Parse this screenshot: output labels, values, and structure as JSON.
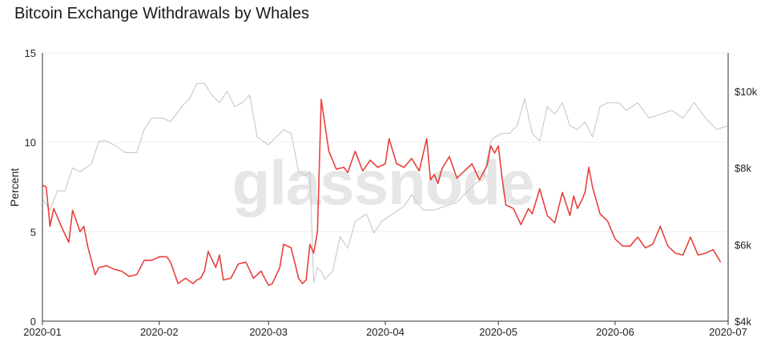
{
  "title": "Bitcoin Exchange Withdrawals by Whales",
  "watermark": "glassnode",
  "colors": {
    "percent_series": "#e8413c",
    "price_series": "#c8c8c8",
    "grid": "#eeeeee",
    "axis": "#333333"
  },
  "chart_data": {
    "type": "line",
    "title": "Bitcoin Exchange Withdrawals by Whales",
    "ylabel": "Percent",
    "ylim": [
      0,
      15
    ],
    "y_ticks": [
      0,
      5,
      10,
      15
    ],
    "y2lim": [
      4000,
      11000
    ],
    "y2_ticks": [
      4000,
      6000,
      8000,
      10000
    ],
    "y2_tick_labels": [
      "$4k",
      "$6k",
      "$8k",
      "$10k"
    ],
    "xlim": [
      "2020-01-01",
      "2020-07-01"
    ],
    "x_ticks": [
      "2020-01",
      "2020-02",
      "2020-03",
      "2020-04",
      "2020-05",
      "2020-06",
      "2020-07"
    ],
    "grid": "horizontal",
    "series": [
      {
        "axis": "left",
        "x": [
          "2020-01-01",
          "2020-01-02",
          "2020-01-03",
          "2020-01-04",
          "2020-01-05",
          "2020-01-06",
          "2020-01-08",
          "2020-01-09",
          "2020-01-10",
          "2020-01-11",
          "2020-01-12",
          "2020-01-13",
          "2020-01-15",
          "2020-01-16",
          "2020-01-18",
          "2020-01-20",
          "2020-01-22",
          "2020-01-24",
          "2020-01-26",
          "2020-01-28",
          "2020-01-30",
          "2020-02-01",
          "2020-02-02",
          "2020-02-03",
          "2020-02-04",
          "2020-02-06",
          "2020-02-08",
          "2020-02-10",
          "2020-02-11",
          "2020-02-12",
          "2020-02-13",
          "2020-02-14",
          "2020-02-16",
          "2020-02-17",
          "2020-02-18",
          "2020-02-20",
          "2020-02-22",
          "2020-02-24",
          "2020-02-26",
          "2020-02-28",
          "2020-03-01",
          "2020-03-02",
          "2020-03-04",
          "2020-03-05",
          "2020-03-07",
          "2020-03-09",
          "2020-03-10",
          "2020-03-11",
          "2020-03-12",
          "2020-03-13",
          "2020-03-14",
          "2020-03-15",
          "2020-03-17",
          "2020-03-19",
          "2020-03-21",
          "2020-03-22",
          "2020-03-24",
          "2020-03-26",
          "2020-03-28",
          "2020-03-30",
          "2020-04-01",
          "2020-04-02",
          "2020-04-04",
          "2020-04-06",
          "2020-04-08",
          "2020-04-10",
          "2020-04-12",
          "2020-04-13",
          "2020-04-14",
          "2020-04-15",
          "2020-04-16",
          "2020-04-18",
          "2020-04-20",
          "2020-04-22",
          "2020-04-24",
          "2020-04-26",
          "2020-04-28",
          "2020-04-29",
          "2020-04-30",
          "2020-05-01",
          "2020-05-02",
          "2020-05-03",
          "2020-05-05",
          "2020-05-07",
          "2020-05-09",
          "2020-05-10",
          "2020-05-12",
          "2020-05-14",
          "2020-05-16",
          "2020-05-18",
          "2020-05-20",
          "2020-05-21",
          "2020-05-22",
          "2020-05-23",
          "2020-05-24",
          "2020-05-25",
          "2020-05-26",
          "2020-05-28",
          "2020-05-30",
          "2020-06-01",
          "2020-06-03",
          "2020-06-05",
          "2020-06-07",
          "2020-06-09",
          "2020-06-11",
          "2020-06-13",
          "2020-06-15",
          "2020-06-17",
          "2020-06-19",
          "2020-06-21",
          "2020-06-23",
          "2020-06-25",
          "2020-06-27",
          "2020-06-29"
        ],
        "values": [
          7.6,
          7.5,
          5.3,
          6.3,
          5.8,
          5.3,
          4.4,
          6.2,
          5.6,
          5.0,
          5.3,
          4.2,
          2.6,
          3.0,
          3.1,
          2.9,
          2.8,
          2.5,
          2.6,
          3.4,
          3.4,
          3.6,
          3.6,
          3.6,
          3.3,
          2.1,
          2.4,
          2.1,
          2.3,
          2.4,
          2.8,
          3.9,
          3.0,
          3.7,
          2.3,
          2.4,
          3.2,
          3.3,
          2.4,
          2.8,
          2.0,
          2.1,
          3.0,
          4.3,
          4.1,
          2.4,
          2.1,
          2.3,
          4.3,
          3.8,
          5.0,
          12.4,
          9.5,
          8.5,
          8.6,
          8.3,
          9.5,
          8.4,
          9.0,
          8.6,
          8.8,
          10.2,
          8.8,
          8.6,
          9.1,
          8.4,
          10.2,
          7.9,
          8.2,
          7.7,
          8.5,
          9.2,
          8.0,
          8.4,
          8.8,
          7.9,
          8.7,
          9.8,
          9.4,
          9.8,
          8.0,
          6.5,
          6.3,
          5.4,
          6.3,
          6.0,
          7.4,
          5.9,
          5.5,
          7.2,
          5.9,
          7.0,
          6.3,
          6.7,
          7.2,
          8.6,
          7.5,
          6.0,
          5.6,
          4.6,
          4.2,
          4.2,
          4.7,
          4.1,
          4.3,
          5.3,
          4.2,
          3.8,
          3.7,
          4.7,
          3.7,
          3.8,
          4.0,
          3.3
        ]
      },
      {
        "axis": "right",
        "x": [
          "2020-01-01",
          "2020-01-03",
          "2020-01-05",
          "2020-01-07",
          "2020-01-09",
          "2020-01-11",
          "2020-01-14",
          "2020-01-16",
          "2020-01-18",
          "2020-01-20",
          "2020-01-23",
          "2020-01-26",
          "2020-01-28",
          "2020-01-30",
          "2020-02-02",
          "2020-02-04",
          "2020-02-07",
          "2020-02-09",
          "2020-02-11",
          "2020-02-13",
          "2020-02-15",
          "2020-02-17",
          "2020-02-19",
          "2020-02-21",
          "2020-02-23",
          "2020-02-25",
          "2020-02-27",
          "2020-03-01",
          "2020-03-03",
          "2020-03-05",
          "2020-03-07",
          "2020-03-09",
          "2020-03-11",
          "2020-03-12",
          "2020-03-13",
          "2020-03-14",
          "2020-03-15",
          "2020-03-16",
          "2020-03-18",
          "2020-03-20",
          "2020-03-22",
          "2020-03-24",
          "2020-03-27",
          "2020-03-29",
          "2020-03-31",
          "2020-04-03",
          "2020-04-06",
          "2020-04-08",
          "2020-04-11",
          "2020-04-14",
          "2020-04-17",
          "2020-04-20",
          "2020-04-23",
          "2020-04-25",
          "2020-04-27",
          "2020-04-29",
          "2020-04-30",
          "2020-05-02",
          "2020-05-04",
          "2020-05-06",
          "2020-05-08",
          "2020-05-10",
          "2020-05-12",
          "2020-05-14",
          "2020-05-16",
          "2020-05-18",
          "2020-05-20",
          "2020-05-22",
          "2020-05-24",
          "2020-05-26",
          "2020-05-28",
          "2020-05-30",
          "2020-06-02",
          "2020-06-04",
          "2020-06-07",
          "2020-06-10",
          "2020-06-13",
          "2020-06-16",
          "2020-06-19",
          "2020-06-22",
          "2020-06-25",
          "2020-06-28",
          "2020-07-01"
        ],
        "values": [
          7200,
          6900,
          7400,
          7400,
          8000,
          7900,
          8100,
          8700,
          8700,
          8600,
          8400,
          8400,
          9000,
          9300,
          9300,
          9200,
          9600,
          9800,
          10200,
          10200,
          9900,
          9700,
          10000,
          9600,
          9700,
          9900,
          8800,
          8600,
          8800,
          9000,
          8900,
          7900,
          7800,
          7900,
          5000,
          5400,
          5300,
          5100,
          5300,
          6200,
          5900,
          6600,
          6800,
          6300,
          6600,
          6800,
          7000,
          7300,
          6900,
          6900,
          7000,
          7100,
          7400,
          7600,
          7700,
          8700,
          8800,
          8900,
          8900,
          9100,
          9800,
          8900,
          8700,
          9600,
          9400,
          9700,
          9100,
          9000,
          9200,
          8800,
          9600,
          9700,
          9700,
          9500,
          9700,
          9300,
          9400,
          9500,
          9300,
          9700,
          9300,
          9000,
          9100
        ]
      }
    ]
  }
}
